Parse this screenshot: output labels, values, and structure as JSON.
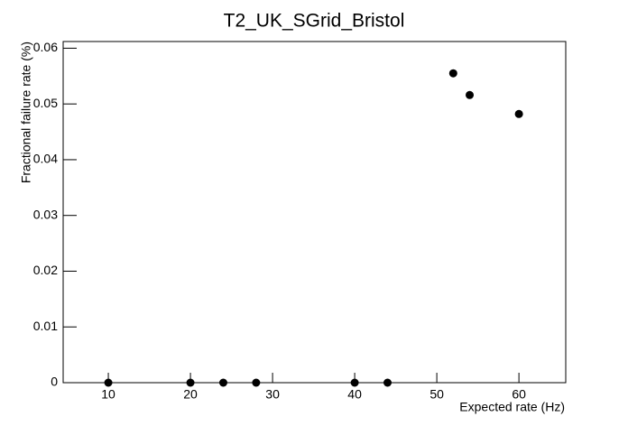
{
  "chart_data": {
    "type": "scatter",
    "title": "T2_UK_SGrid_Bristol",
    "x_label": "Expected rate (Hz)",
    "y_label": "Fractional failure rate (%)",
    "x": [
      10,
      20,
      24,
      28,
      40,
      44,
      52,
      54,
      60
    ],
    "values": [
      0,
      0,
      0,
      0,
      0,
      0,
      0.0555,
      0.0516,
      0.0482
    ],
    "color": "#000000",
    "xlim": [
      4.5,
      65.7
    ],
    "xticks": [
      10,
      20,
      30,
      40,
      50,
      60
    ],
    "ylim": [
      0,
      0.0612
    ],
    "yticks": [
      0,
      0.01,
      0.02,
      0.03,
      0.04,
      0.05,
      0.06
    ],
    "grid": false
  }
}
